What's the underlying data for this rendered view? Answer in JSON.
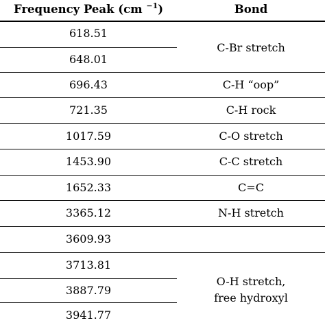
{
  "header": {
    "col1_text": "Frequency Peak (cm",
    "col1_sup": "−1",
    "col1_close": ")",
    "col2": "Bond"
  },
  "rows": [
    {
      "freq": "618.51"
    },
    {
      "freq": "648.01"
    },
    {
      "freq": "696.43"
    },
    {
      "freq": "721.35"
    },
    {
      "freq": "1017.59"
    },
    {
      "freq": "1453.90"
    },
    {
      "freq": "1652.33"
    },
    {
      "freq": "3365.12"
    },
    {
      "freq": "3609.93"
    },
    {
      "freq": "3713.81"
    },
    {
      "freq": "3887.79"
    },
    {
      "freq": "3941.77"
    }
  ],
  "bonds": {
    "cbr": "C-Br stretch",
    "ch_oop": "C-H “oop”",
    "ch_rock": "C-H rock",
    "co": "C-O stretch",
    "cc": "C-C stretch",
    "c_eq_c": "C=C",
    "nh": "N-H stretch",
    "oh_line1": "O-H stretch,",
    "oh_line2": "free hydroxyl"
  }
}
